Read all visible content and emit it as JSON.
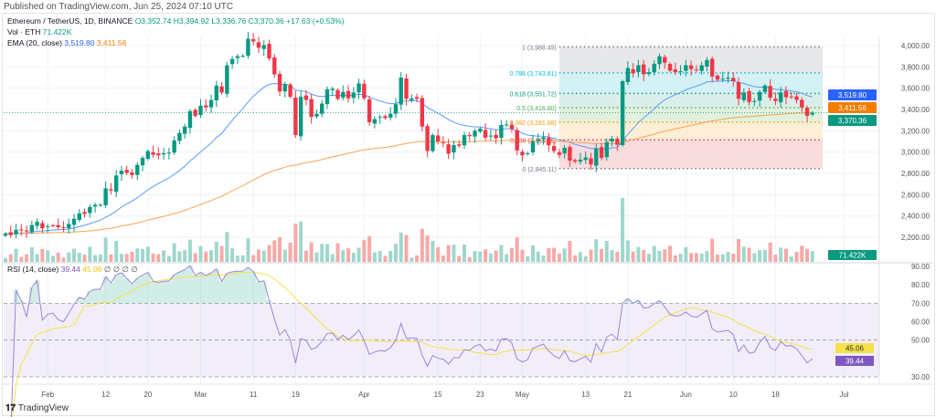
{
  "published": "Published on TradingView.com, Jun 25, 2024 07:10 UTC",
  "legend": {
    "symbol": "Ethereum / TetherUS, 1D, BINANCE",
    "open": "O3,352.74",
    "high": "H3,394.92",
    "low": "L3,336.76",
    "close": "C3,370.36",
    "change": "+17.63 (+0.53%)",
    "vol_label": "Vol · ETH",
    "vol_value": "71.422K",
    "ema_label": "EMA (20, close)",
    "ema_value1": "3,519.80",
    "ema_value2": "3,411.56"
  },
  "rsi_legend": {
    "label": "RSI (14, close)",
    "value": "39.44",
    "ma": "45.06",
    "extra": "∅ ∅ ∅ ∅"
  },
  "footer": {
    "logo": "TradingView"
  },
  "colors": {
    "up": "#089981",
    "down": "#f23645",
    "ema_fast": "#5b9cf6",
    "ema_slow": "#f7a350",
    "rsi": "#7e57c2",
    "rsi_ma": "#f5e14a"
  },
  "chart_data": [
    {
      "type": "candlestick",
      "start_date": "2024-01-24",
      "end_date": "2024-06-25",
      "closes": [
        2235,
        2220,
        2270,
        2265,
        2255,
        2315,
        2345,
        2285,
        2305,
        2310,
        2295,
        2290,
        2325,
        2375,
        2425,
        2420,
        2485,
        2505,
        2505,
        2660,
        2640,
        2780,
        2825,
        2805,
        2785,
        2880,
        2945,
        3010,
        2975,
        2970,
        2990,
        2995,
        3110,
        3180,
        3240,
        3385,
        3340,
        3435,
        3420,
        3490,
        3625,
        3560,
        3815,
        3875,
        3900,
        3905,
        4065,
        4040,
        3980,
        4005,
        3880,
        3730,
        3570,
        3640,
        3520,
        3160,
        3520,
        3490,
        3330,
        3360,
        3455,
        3590,
        3595,
        3500,
        3565,
        3505,
        3560,
        3645,
        3505,
        3280,
        3310,
        3330,
        3320,
        3360,
        3450,
        3700,
        3500,
        3505,
        3500,
        3240,
        3010,
        3160,
        3100,
        3085,
        2985,
        3065,
        3060,
        3160,
        3150,
        3200,
        3220,
        3135,
        3155,
        3130,
        3255,
        3260,
        3215,
        3015,
        2970,
        2990,
        3100,
        3120,
        3140,
        3065,
        3010,
        2975,
        3040,
        2920,
        2910,
        2930,
        2950,
        2885,
        3035,
        2945,
        3095,
        3125,
        3070,
        3665,
        3790,
        3740,
        3815,
        3730,
        3750,
        3830,
        3900,
        3840,
        3765,
        3750,
        3760,
        3815,
        3780,
        3770,
        3815,
        3865,
        3710,
        3680,
        3690,
        3700,
        3665,
        3500,
        3560,
        3470,
        3480,
        3565,
        3625,
        3510,
        3480,
        3560,
        3515,
        3520,
        3490,
        3420,
        3340,
        3370
      ],
      "last": {
        "open": 3352.74,
        "high": 3394.92,
        "low": 3336.76,
        "close": 3370.36
      },
      "price_axis": [
        "4,000.00",
        "3,800.00",
        "3,600.00",
        "3,400.00",
        "3,200.00",
        "3,000.00",
        "2,800.00",
        "2,600.00",
        "2,400.00",
        "2,200.00"
      ],
      "price_ticks": [
        4000,
        3800,
        3600,
        3400,
        3200,
        3000,
        2800,
        2600,
        2400,
        2200
      ],
      "ylim": [
        2100,
        4200
      ],
      "price_labels": [
        {
          "text": "3,519.80",
          "value": 3519.8,
          "color": "#2962ff"
        },
        {
          "text": "3,411.56",
          "value": 3411.56,
          "color": "#f57c00"
        },
        {
          "text": "3,370.36",
          "value": 3370.36,
          "color": "#089981"
        }
      ],
      "volume_label": "71.422K",
      "fibonacci": [
        {
          "ratio": "1",
          "price": 3988.49,
          "text": "1 (3,988.49)",
          "color": "#787b86",
          "fill": "#e3e4e6"
        },
        {
          "ratio": "0.786",
          "price": 3743.81,
          "text": "0.786 (3,743.81)",
          "color": "#00bcd4",
          "fill": "#cdeff5"
        },
        {
          "ratio": "0.618",
          "price": 3551.72,
          "text": "0.618 (3,551.72)",
          "color": "#089981",
          "fill": "#d5ece6"
        },
        {
          "ratio": "0.5",
          "price": 3416.8,
          "text": "0.5 (3,416.80)",
          "color": "#4caf50",
          "fill": "#dcefd8"
        },
        {
          "ratio": "0.382",
          "price": 3281.88,
          "text": "0.382 (3,281.88)",
          "color": "#ff9800",
          "fill": "#fdebcf"
        },
        {
          "ratio": "0.236",
          "price": 3114.86,
          "text": "0.236 (3,114.86)",
          "color": "#f23645",
          "fill": "#f9d6d8"
        },
        {
          "ratio": "0",
          "price": 2845.11,
          "text": "0 (2,845.11)",
          "color": "#787b86",
          "fill": ""
        }
      ],
      "fib_start_date": "2024-05-08"
    },
    {
      "type": "line",
      "title": "RSI (14, close)",
      "y_axis": [
        "90.00",
        "80.00",
        "70.00",
        "60.00",
        "50.00",
        "40.00",
        "30.00"
      ],
      "y_ticks": [
        90,
        80,
        70,
        60,
        50,
        40,
        30
      ],
      "ylim": [
        30,
        90
      ],
      "bands": [
        70,
        50,
        30
      ],
      "value_labels": [
        {
          "text": "45.06",
          "value": 45.06,
          "color": "#f5e14a"
        },
        {
          "text": "39.44",
          "value": 39.44,
          "color": "#7e57c2"
        }
      ]
    }
  ],
  "x_axis": [
    {
      "text": "Feb",
      "date": "2024-02-01"
    },
    {
      "text": "12",
      "date": "2024-02-12"
    },
    {
      "text": "20",
      "date": "2024-02-20"
    },
    {
      "text": "Mar",
      "date": "2024-03-01"
    },
    {
      "text": "11",
      "date": "2024-03-11"
    },
    {
      "text": "19",
      "date": "2024-03-19"
    },
    {
      "text": "Apr",
      "date": "2024-04-01"
    },
    {
      "text": "15",
      "date": "2024-04-15"
    },
    {
      "text": "23",
      "date": "2024-04-23"
    },
    {
      "text": "May",
      "date": "2024-05-01"
    },
    {
      "text": "13",
      "date": "2024-05-13"
    },
    {
      "text": "21",
      "date": "2024-05-21"
    },
    {
      "text": "Jun",
      "date": "2024-06-01"
    },
    {
      "text": "10",
      "date": "2024-06-10"
    },
    {
      "text": "18",
      "date": "2024-06-18"
    },
    {
      "text": "Jul",
      "date": "2024-07-01"
    }
  ]
}
